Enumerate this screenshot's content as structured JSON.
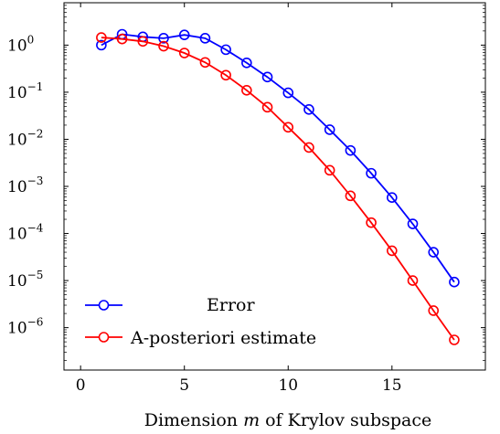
{
  "chart_data": {
    "type": "line",
    "xlabel": "Dimension",
    "xlabel_var": "m",
    "xlabel_rest": "of Krylov subspace",
    "title": "",
    "ylabel": "",
    "xlim": [
      -0.8,
      19.5
    ],
    "ylim_log10": [
      -6.9,
      0.9
    ],
    "y_scale": "log",
    "grid": false,
    "legend_position": "bottom-left",
    "x_ticks": [
      0,
      5,
      10,
      15
    ],
    "y_ticks": [
      {
        "exp": 0,
        "base": "10",
        "sup": "0"
      },
      {
        "exp": -1,
        "base": "10",
        "sup": "−1"
      },
      {
        "exp": -2,
        "base": "10",
        "sup": "−2"
      },
      {
        "exp": -3,
        "base": "10",
        "sup": "−3"
      },
      {
        "exp": -4,
        "base": "10",
        "sup": "−4"
      },
      {
        "exp": -5,
        "base": "10",
        "sup": "−5"
      },
      {
        "exp": -6,
        "base": "10",
        "sup": "−6"
      }
    ],
    "series": [
      {
        "name": "Error",
        "color": "#0000ff",
        "x": [
          1,
          2,
          3,
          4,
          5,
          6,
          7,
          8,
          9,
          10,
          11,
          12,
          13,
          14,
          15,
          16,
          17,
          18
        ],
        "y": [
          1.0,
          1.7,
          1.5,
          1.4,
          1.65,
          1.4,
          0.8,
          0.42,
          0.21,
          0.097,
          0.043,
          0.016,
          0.0058,
          0.0019,
          0.00058,
          0.00016,
          4e-05,
          9.3e-06
        ]
      },
      {
        "name": "A-posteriori estimate",
        "color": "#ff0000",
        "x": [
          1,
          2,
          3,
          4,
          5,
          6,
          7,
          8,
          9,
          10,
          11,
          12,
          13,
          14,
          15,
          16,
          17,
          18
        ],
        "y": [
          1.45,
          1.35,
          1.2,
          0.95,
          0.68,
          0.43,
          0.23,
          0.11,
          0.048,
          0.018,
          0.0067,
          0.0022,
          0.00063,
          0.00017,
          4.3e-05,
          1e-05,
          2.3e-06,
          5.5e-07
        ]
      }
    ]
  }
}
